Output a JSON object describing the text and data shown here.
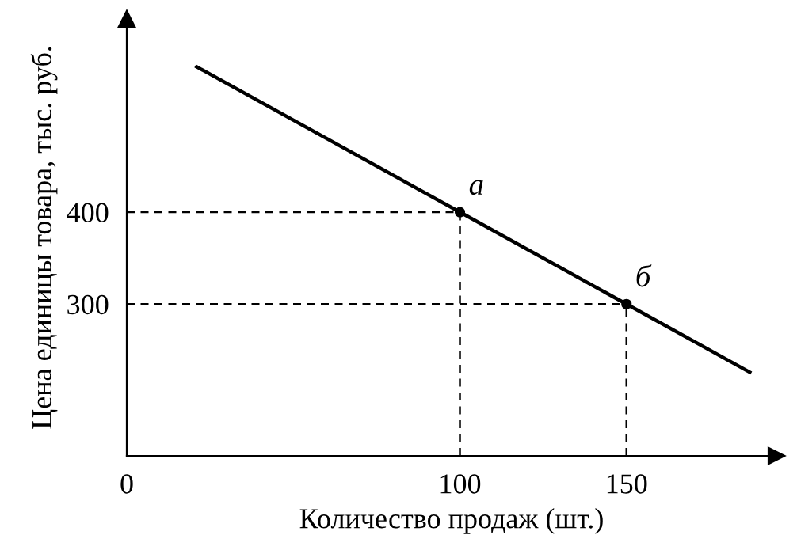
{
  "chart_data": {
    "type": "line",
    "xlabel": "Количество продаж (шт.)",
    "ylabel": "Цена единицы товара, тыс. руб.",
    "xlim": [
      0,
      195
    ],
    "ylim": [
      135,
      610
    ],
    "xticks": [
      0,
      100,
      150
    ],
    "yticks": [
      300,
      400
    ],
    "grid": false,
    "legend": false,
    "marker": "none",
    "line_style": "solid",
    "series": [
      {
        "color": "#000000",
        "x": [
          21,
          100,
          150,
          187
        ],
        "values": [
          558,
          400,
          300,
          226
        ]
      },
      {
        "type": "scatter",
        "marker": "circle",
        "color": "#000000",
        "x": [
          100,
          150
        ],
        "values": [
          400,
          300
        ]
      },
      {
        "line_style": "dashed",
        "color": "#000000",
        "x": [
          0,
          100
        ],
        "values": [
          400,
          400
        ]
      },
      {
        "line_style": "dashed",
        "color": "#000000",
        "x": [
          100,
          100
        ],
        "values": [
          135,
          400
        ]
      },
      {
        "line_style": "dashed",
        "color": "#000000",
        "x": [
          0,
          150
        ],
        "values": [
          300,
          300
        ]
      },
      {
        "line_style": "dashed",
        "color": "#000000",
        "x": [
          150,
          150
        ],
        "values": [
          135,
          300
        ]
      }
    ],
    "annotations": [
      {
        "text": "а",
        "x": 100,
        "y": 400
      },
      {
        "text": "б",
        "x": 150,
        "y": 300
      }
    ]
  }
}
